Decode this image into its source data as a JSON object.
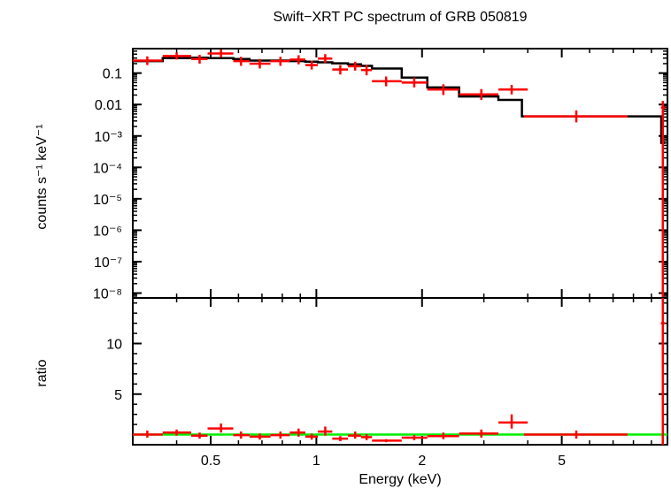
{
  "chart_data": [
    {
      "panel": "spectrum",
      "type": "scatter",
      "title": "Swift−XRT PC spectrum of GRB 050819",
      "ylabel": "counts s⁻¹ keV⁻¹",
      "xscale": "log",
      "yscale": "log",
      "xlim": [
        0.3,
        10
      ],
      "ylim": [
        7e-09,
        0.6
      ],
      "x_ticks": [
        0.5,
        1,
        2,
        5
      ],
      "y_tick_labels": [
        "0.1",
        "0.01",
        "10⁻³",
        "10⁻⁴",
        "10⁻⁵",
        "10⁻⁶",
        "10⁻⁷",
        "10⁻⁸"
      ],
      "y_tick_values": [
        0.1,
        0.01,
        0.001,
        0.0001,
        1e-05,
        1e-06,
        1e-07,
        1e-08
      ],
      "series": [
        {
          "color": "#ff0000",
          "style": "crosses",
          "points": [
            {
              "x": 0.33,
              "xerr": [
                0.3,
                0.365
              ],
              "y": 0.25,
              "yerr": [
                0.18,
                0.34
              ]
            },
            {
              "x": 0.4,
              "xerr": [
                0.365,
                0.44
              ],
              "y": 0.35,
              "yerr": [
                0.27,
                0.45
              ]
            },
            {
              "x": 0.465,
              "xerr": [
                0.44,
                0.49
              ],
              "y": 0.28,
              "yerr": [
                0.2,
                0.38
              ]
            },
            {
              "x": 0.535,
              "xerr": [
                0.49,
                0.58
              ],
              "y": 0.42,
              "yerr": [
                0.32,
                0.56
              ]
            },
            {
              "x": 0.61,
              "xerr": [
                0.58,
                0.645
              ],
              "y": 0.24,
              "yerr": [
                0.17,
                0.33
              ]
            },
            {
              "x": 0.69,
              "xerr": [
                0.645,
                0.74
              ],
              "y": 0.2,
              "yerr": [
                0.14,
                0.28
              ]
            },
            {
              "x": 0.79,
              "xerr": [
                0.74,
                0.84
              ],
              "y": 0.24,
              "yerr": [
                0.17,
                0.33
              ]
            },
            {
              "x": 0.89,
              "xerr": [
                0.84,
                0.93
              ],
              "y": 0.27,
              "yerr": [
                0.19,
                0.37
              ]
            },
            {
              "x": 0.97,
              "xerr": [
                0.93,
                1.01
              ],
              "y": 0.18,
              "yerr": [
                0.13,
                0.25
              ]
            },
            {
              "x": 1.06,
              "xerr": [
                1.01,
                1.11
              ],
              "y": 0.29,
              "yerr": [
                0.21,
                0.4
              ]
            },
            {
              "x": 1.17,
              "xerr": [
                1.11,
                1.23
              ],
              "y": 0.13,
              "yerr": [
                0.09,
                0.18
              ]
            },
            {
              "x": 1.29,
              "xerr": [
                1.23,
                1.34
              ],
              "y": 0.165,
              "yerr": [
                0.12,
                0.23
              ]
            },
            {
              "x": 1.39,
              "xerr": [
                1.34,
                1.44
              ],
              "y": 0.125,
              "yerr": [
                0.085,
                0.18
              ]
            },
            {
              "x": 1.58,
              "xerr": [
                1.44,
                1.75
              ],
              "y": 0.055,
              "yerr": [
                0.038,
                0.078
              ]
            },
            {
              "x": 1.9,
              "xerr": [
                1.75,
                2.07
              ],
              "y": 0.05,
              "yerr": [
                0.035,
                0.072
              ]
            },
            {
              "x": 2.3,
              "xerr": [
                2.07,
                2.55
              ],
              "y": 0.03,
              "yerr": [
                0.02,
                0.044
              ]
            },
            {
              "x": 2.95,
              "xerr": [
                2.55,
                3.3
              ],
              "y": 0.021,
              "yerr": [
                0.014,
                0.031
              ]
            },
            {
              "x": 3.6,
              "xerr": [
                3.3,
                4.0
              ],
              "y": 0.03,
              "yerr": [
                0.021,
                0.042
              ]
            },
            {
              "x": 5.5,
              "xerr": [
                3.9,
                7.7
              ],
              "y": 0.0042,
              "yerr": [
                0.0027,
                0.0065
              ]
            },
            {
              "x": 9.7,
              "xerr": [
                9.58,
                9.85
              ],
              "y": 0.008,
              "yerr": [
                7e-09,
                0.013
              ]
            }
          ]
        },
        {
          "color": "#000000",
          "style": "step-model",
          "bins": [
            {
              "x0": 0.3,
              "x1": 0.365,
              "y": 0.24
            },
            {
              "x0": 0.365,
              "x1": 0.44,
              "y": 0.3
            },
            {
              "x0": 0.44,
              "x1": 0.49,
              "y": 0.31
            },
            {
              "x0": 0.49,
              "x1": 0.58,
              "y": 0.3
            },
            {
              "x0": 0.58,
              "x1": 0.645,
              "y": 0.28
            },
            {
              "x0": 0.645,
              "x1": 0.74,
              "y": 0.25
            },
            {
              "x0": 0.74,
              "x1": 0.84,
              "y": 0.25
            },
            {
              "x0": 0.84,
              "x1": 0.93,
              "y": 0.24
            },
            {
              "x0": 0.93,
              "x1": 1.01,
              "y": 0.23
            },
            {
              "x0": 1.01,
              "x1": 1.11,
              "y": 0.22
            },
            {
              "x0": 1.11,
              "x1": 1.23,
              "y": 0.205
            },
            {
              "x0": 1.23,
              "x1": 1.34,
              "y": 0.19
            },
            {
              "x0": 1.34,
              "x1": 1.44,
              "y": 0.17
            },
            {
              "x0": 1.44,
              "x1": 1.75,
              "y": 0.14
            },
            {
              "x0": 1.75,
              "x1": 2.07,
              "y": 0.072
            },
            {
              "x0": 2.07,
              "x1": 2.55,
              "y": 0.035
            },
            {
              "x0": 2.55,
              "x1": 3.3,
              "y": 0.018
            },
            {
              "x0": 3.3,
              "x1": 3.85,
              "y": 0.014
            },
            {
              "x0": 3.85,
              "x1": 9.6,
              "y": 0.0042
            },
            {
              "x0": 9.6,
              "x1": 9.85,
              "y": 0.0006
            }
          ]
        }
      ]
    },
    {
      "panel": "ratio",
      "type": "scatter",
      "xlabel": "Energy (keV)",
      "ylabel": "ratio",
      "xscale": "log",
      "xlim": [
        0.3,
        10
      ],
      "ylim": [
        0,
        14.5
      ],
      "x_ticks": [
        0.5,
        1,
        2,
        5
      ],
      "x_tick_labels": [
        "0.5",
        "1",
        "2",
        "5"
      ],
      "y_ticks": [
        5,
        10
      ],
      "y_tick_labels": [
        "5",
        "10"
      ],
      "reference_line": {
        "y": 1,
        "color": "#00ee00"
      },
      "series": [
        {
          "color": "#ff0000",
          "style": "crosses",
          "points": [
            {
              "x": 0.33,
              "xerr": [
                0.3,
                0.365
              ],
              "y": 1.0,
              "yerr": [
                0.7,
                1.4
              ]
            },
            {
              "x": 0.4,
              "xerr": [
                0.365,
                0.44
              ],
              "y": 1.2,
              "yerr": [
                0.9,
                1.5
              ]
            },
            {
              "x": 0.465,
              "xerr": [
                0.44,
                0.49
              ],
              "y": 0.9,
              "yerr": [
                0.6,
                1.2
              ]
            },
            {
              "x": 0.535,
              "xerr": [
                0.49,
                0.58
              ],
              "y": 1.6,
              "yerr": [
                1.2,
                2.1
              ]
            },
            {
              "x": 0.61,
              "xerr": [
                0.58,
                0.645
              ],
              "y": 0.95,
              "yerr": [
                0.6,
                1.3
              ]
            },
            {
              "x": 0.69,
              "xerr": [
                0.645,
                0.74
              ],
              "y": 0.8,
              "yerr": [
                0.5,
                1.1
              ]
            },
            {
              "x": 0.79,
              "xerr": [
                0.74,
                0.84
              ],
              "y": 0.95,
              "yerr": [
                0.6,
                1.3
              ]
            },
            {
              "x": 0.89,
              "xerr": [
                0.84,
                0.93
              ],
              "y": 1.2,
              "yerr": [
                0.8,
                1.6
              ]
            },
            {
              "x": 0.97,
              "xerr": [
                0.93,
                1.01
              ],
              "y": 0.8,
              "yerr": [
                0.5,
                1.1
              ]
            },
            {
              "x": 1.06,
              "xerr": [
                1.01,
                1.11
              ],
              "y": 1.3,
              "yerr": [
                0.9,
                1.8
              ]
            },
            {
              "x": 1.17,
              "xerr": [
                1.11,
                1.23
              ],
              "y": 0.6,
              "yerr": [
                0.35,
                0.85
              ]
            },
            {
              "x": 1.29,
              "xerr": [
                1.23,
                1.34
              ],
              "y": 0.9,
              "yerr": [
                0.6,
                1.3
              ]
            },
            {
              "x": 1.39,
              "xerr": [
                1.34,
                1.44
              ],
              "y": 0.75,
              "yerr": [
                0.45,
                1.05
              ]
            },
            {
              "x": 1.58,
              "xerr": [
                1.44,
                1.75
              ],
              "y": 0.4,
              "yerr": [
                0.25,
                0.55
              ]
            },
            {
              "x": 1.9,
              "xerr": [
                1.75,
                2.07
              ],
              "y": 0.7,
              "yerr": [
                0.45,
                0.95
              ]
            },
            {
              "x": 2.3,
              "xerr": [
                2.07,
                2.55
              ],
              "y": 0.85,
              "yerr": [
                0.55,
                1.2
              ]
            },
            {
              "x": 2.95,
              "xerr": [
                2.55,
                3.3
              ],
              "y": 1.1,
              "yerr": [
                0.7,
                1.5
              ]
            },
            {
              "x": 3.6,
              "xerr": [
                3.3,
                4.0
              ],
              "y": 2.2,
              "yerr": [
                1.6,
                3.0
              ]
            },
            {
              "x": 5.5,
              "xerr": [
                3.9,
                7.7
              ],
              "y": 1.0,
              "yerr": [
                0.6,
                1.4
              ]
            },
            {
              "x": 9.7,
              "xerr": [
                9.58,
                9.85
              ],
              "y": 12.0,
              "yerr": [
                0.0,
                14.5
              ]
            }
          ]
        }
      ]
    }
  ]
}
